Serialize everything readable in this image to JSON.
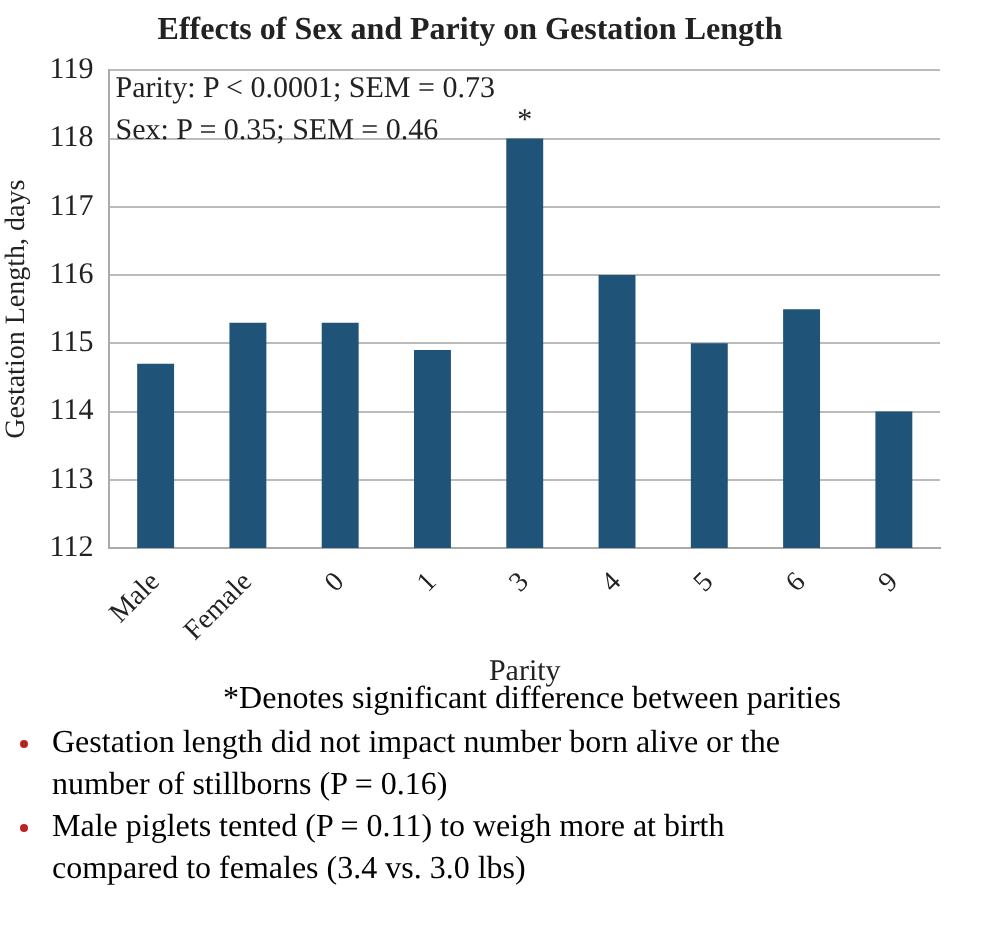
{
  "chart_data": {
    "type": "bar",
    "title": "Effects of Sex and Parity on Gestation Length",
    "xlabel": "Parity",
    "ylabel": "Gestation Length, days",
    "categories": [
      "Male",
      "Female",
      "0",
      "1",
      "3",
      "4",
      "5",
      "6",
      "9"
    ],
    "values": [
      114.7,
      115.3,
      115.3,
      114.9,
      118,
      116,
      115,
      115.5,
      114
    ],
    "color": "#1f5378",
    "ylim": [
      112,
      119
    ],
    "yticks": [
      112,
      113,
      114,
      115,
      116,
      117,
      118,
      119
    ],
    "grid": "y",
    "annotations": [
      "Parity: P < 0.0001; SEM = 0.73",
      "Sex: P = 0.35; SEM = 0.46",
      {
        "text": "*",
        "x": "3",
        "y": 118
      },
      "*Denotes significant difference between parities",
      "Gestation length did not impact number born alive or the number of stillborns (P = 0.16)",
      "Male piglets tented (P = 0.11) to weigh more at birth compared to females (3.4 vs. 3.0 lbs)"
    ]
  }
}
